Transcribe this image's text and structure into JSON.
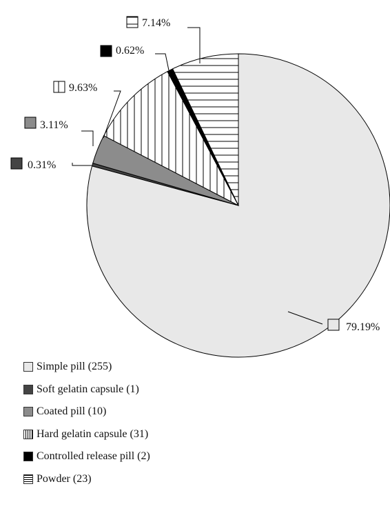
{
  "chart_data": {
    "type": "pie",
    "series": [
      {
        "name": "Simple pill",
        "count": 255,
        "value": 79.19,
        "label": "79.19%",
        "legend": "Simple pill (255)",
        "fill": "#e8e8e8",
        "pattern": "solid"
      },
      {
        "name": "Soft gelatin capsule",
        "count": 1,
        "value": 0.31,
        "label": "0.31%",
        "legend": "Soft gelatin capsule (1)",
        "fill": "#444444",
        "pattern": "solid"
      },
      {
        "name": "Coated pill",
        "count": 10,
        "value": 3.11,
        "label": "3.11%",
        "legend": "Coated pill (10)",
        "fill": "#8c8c8c",
        "pattern": "solid"
      },
      {
        "name": "Hard gelatin capsule",
        "count": 31,
        "value": 9.63,
        "label": "9.63%",
        "legend": "Hard gelatin capsule (31)",
        "fill": "#ffffff",
        "pattern": "vertical-lines"
      },
      {
        "name": "Controlled release pill",
        "count": 2,
        "value": 0.62,
        "label": "0.62%",
        "legend": "Controlled release pill (2)",
        "fill": "#000000",
        "pattern": "solid"
      },
      {
        "name": "Powder",
        "count": 23,
        "value": 7.14,
        "label": "7.14%",
        "legend": "Powder (23)",
        "fill": "#ffffff",
        "pattern": "horizontal-lines"
      }
    ],
    "start": "12 o'clock",
    "direction": "clockwise",
    "legend_position": "bottom-left"
  }
}
